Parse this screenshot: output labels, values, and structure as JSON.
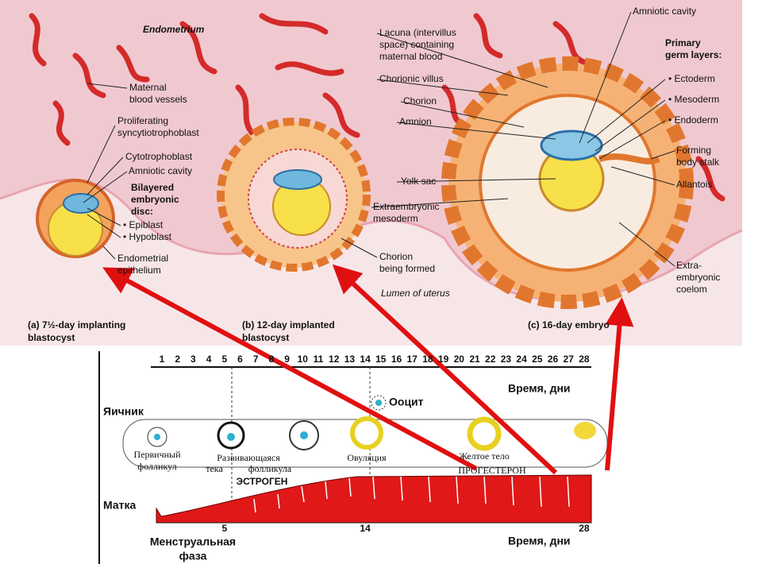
{
  "top": {
    "labels": [
      [
        "Endometrium"
      ],
      [
        "Maternal",
        "blood vessels"
      ],
      [
        "Proliferating",
        "syncytiotrophoblast"
      ],
      [
        "Cytotrophoblast"
      ],
      [
        "Amniotic cavity"
      ],
      [
        "Bilayered",
        "embryonic",
        "disc:"
      ],
      [
        "• Epiblast"
      ],
      [
        "• Hypoblast"
      ],
      [
        "Endometrial",
        "epithelium"
      ],
      [
        "Amniotic cavity"
      ],
      [
        "Lacuna (intervillus",
        "space) containing",
        "maternal blood"
      ],
      [
        "Chorionic villus"
      ],
      [
        "Chorion"
      ],
      [
        "Amnion"
      ],
      [
        "Yolk sac"
      ],
      [
        "Extraembryonic",
        "mesoderm"
      ],
      [
        "Chorion",
        "being formed"
      ],
      [
        "Lumen of uterus"
      ],
      [
        "Primary",
        "germ layers:"
      ],
      [
        "• Ectoderm"
      ],
      [
        "• Mesoderm"
      ],
      [
        "• Endoderm"
      ],
      [
        "Forming",
        "body stalk"
      ],
      [
        "Allantois"
      ],
      [
        "Extra-",
        "embryonic",
        "coelom"
      ]
    ],
    "captions": [
      [
        "(a) 7½-day implanting",
        "blastocyst"
      ],
      [
        "(b) 12-day implanted",
        "blastocyst"
      ],
      [
        "(c) 16-day embryo"
      ]
    ]
  },
  "bottom": {
    "days": [
      1,
      2,
      3,
      4,
      5,
      6,
      7,
      8,
      9,
      10,
      11,
      12,
      13,
      14,
      15,
      16,
      17,
      18,
      19,
      20,
      21,
      22,
      23,
      24,
      25,
      26,
      27,
      28
    ],
    "time_label_top": "Время, дни",
    "ovary": "Яичник",
    "oocyte": "Ооцит",
    "primary_follicle": [
      "Первичный",
      "фолликул"
    ],
    "developing_follicle": [
      "Развивающаяся",
      "тека",
      "фолликула"
    ],
    "estrogen": "ЭСТРОГЕН",
    "ovulation": "Овуляция",
    "corpus_luteum": "Желтое тело",
    "progesterone": "ПРОГЕСТЕРОН",
    "uterus": "Матка",
    "axis_days": [
      5,
      14,
      28
    ],
    "time_label_bottom": "Время, дни",
    "menstrual_phase": [
      "Менструальная",
      "фаза"
    ]
  }
}
